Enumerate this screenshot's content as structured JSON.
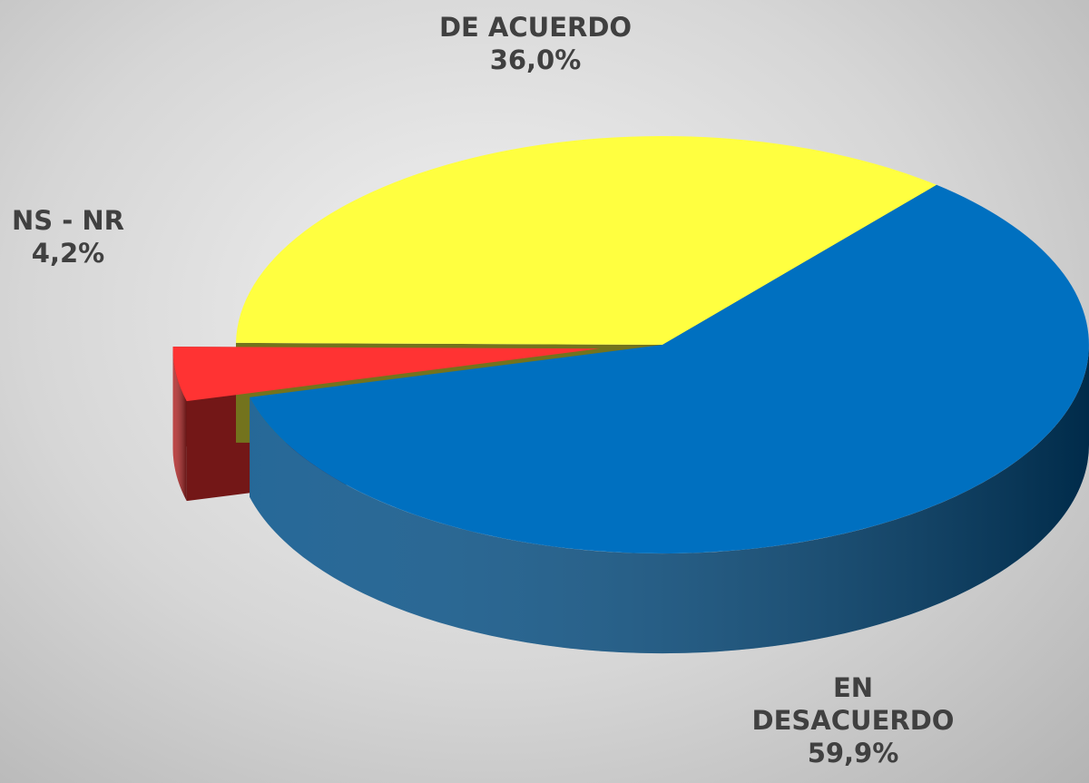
{
  "chart_data": {
    "type": "pie",
    "categories": [
      "EN DESACUERDO",
      "NS - NR",
      "DE ACUERDO"
    ],
    "values": [
      59.9,
      4.2,
      36.0
    ],
    "value_labels": [
      "59,9%",
      "4,2%",
      "36,0%"
    ],
    "colors": [
      "#0070c0",
      "#ff3333",
      "#ffff40"
    ]
  }
}
